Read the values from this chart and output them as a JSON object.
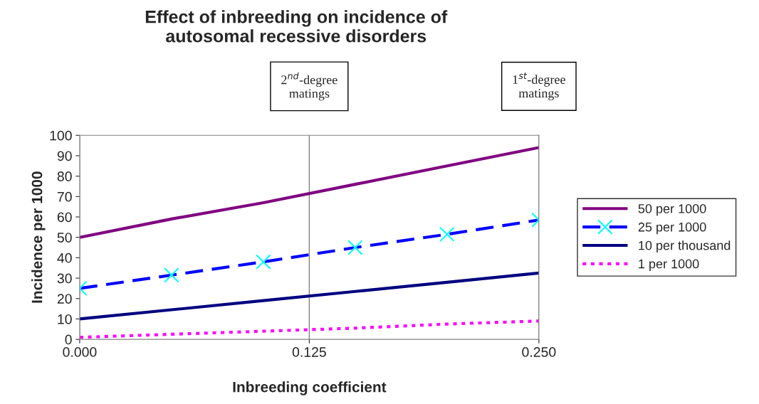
{
  "chart_data": {
    "type": "line",
    "title": "Effect of inbreeding on incidence of\nautosomal recessive disorders",
    "xlabel": "Inbreeding coefficient",
    "ylabel": "Incidence per 1000",
    "annotations": [
      "2$^{nd}$-degree\nmatings",
      "1$^{st}$-degree\nmatings"
    ],
    "x": [
      0,
      0.05,
      0.1,
      0.15,
      0.2,
      0.25
    ],
    "series": [
      {
        "name": "50 per 1000",
        "color": "#800080",
        "values": [
          50,
          59,
          67,
          76,
          85,
          94
        ],
        "line_style": "solid",
        "marker": "none"
      },
      {
        "name": "25 per 1000",
        "color": "#0000ff",
        "values": [
          25,
          31.5,
          38,
          45,
          51.5,
          58.5
        ],
        "line_style": "dashed",
        "marker": "cross"
      },
      {
        "name": "10 per thousand",
        "color": "#000080",
        "values": [
          10,
          14.5,
          19,
          23.5,
          28,
          32.5
        ],
        "line_style": "solid",
        "marker": "none"
      },
      {
        "name": "1 per 1000",
        "color": "#ff00ff",
        "values": [
          1,
          2.5,
          4,
          5.5,
          7.5,
          9
        ],
        "line_style": "dotted",
        "marker": "none"
      }
    ],
    "xlim": [
      0,
      0.25
    ],
    "xticks": [
      {
        "value": 0,
        "label": "0.000"
      },
      {
        "value": 0.125,
        "label": "0.125"
      },
      {
        "value": 0.25,
        "label": "0.250"
      }
    ],
    "ylim": [
      0,
      100
    ],
    "yticks": [
      0,
      10,
      20,
      30,
      40,
      50,
      60,
      70,
      80,
      90,
      100
    ],
    "grid": "x",
    "legend": "right"
  }
}
